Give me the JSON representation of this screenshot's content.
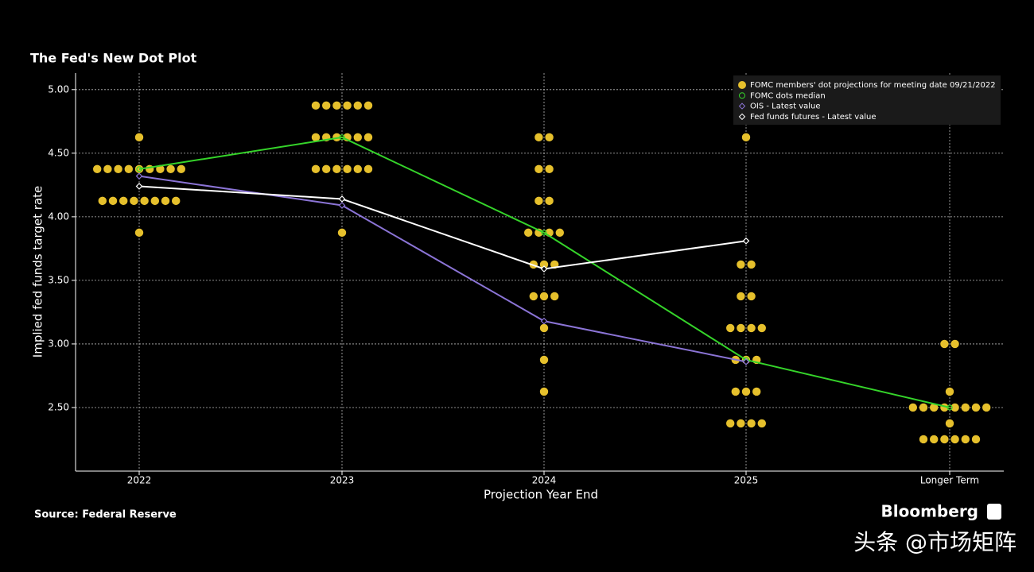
{
  "chart_data": {
    "type": "dot",
    "title": "The Fed's New Dot Plot",
    "ylabel": "Implied fed funds target rate",
    "xlabel": "Projection Year End",
    "source": "Source: Federal Reserve",
    "brand": "Bloomberg",
    "watermark": "头条 @市场矩阵",
    "categories": [
      "2022",
      "2023",
      "2024",
      "2025",
      "Longer Term"
    ],
    "ylim": [
      2.0,
      5.13
    ],
    "yticks": [
      {
        "value": 2.5,
        "label": "2.50"
      },
      {
        "value": 3.0,
        "label": "3.00"
      },
      {
        "value": 3.5,
        "label": "3.50"
      },
      {
        "value": 4.0,
        "label": "4.00"
      },
      {
        "value": 4.5,
        "label": "4.50"
      },
      {
        "value": 5.0,
        "label": "5.00"
      }
    ],
    "grid": true,
    "legend": "top-right",
    "dots": {
      "name": "FOMC members' dot projections for meeting date 09/21/2022",
      "color": "#e6c02c",
      "values": [
        [
          4.625,
          4.375,
          4.375,
          4.375,
          4.375,
          4.375,
          4.375,
          4.375,
          4.375,
          4.375,
          4.125,
          4.125,
          4.125,
          4.125,
          4.125,
          4.125,
          4.125,
          4.125,
          3.875
        ],
        [
          4.875,
          4.875,
          4.875,
          4.875,
          4.875,
          4.875,
          4.625,
          4.625,
          4.625,
          4.625,
          4.625,
          4.625,
          4.375,
          4.375,
          4.375,
          4.375,
          4.375,
          4.375,
          3.875
        ],
        [
          4.625,
          4.625,
          4.375,
          4.375,
          4.125,
          4.125,
          3.875,
          3.875,
          3.875,
          3.875,
          3.625,
          3.625,
          3.625,
          3.375,
          3.375,
          3.375,
          3.125,
          2.875,
          2.625
        ],
        [
          4.625,
          3.625,
          3.625,
          3.375,
          3.375,
          3.125,
          3.125,
          3.125,
          3.125,
          2.875,
          2.875,
          2.875,
          2.625,
          2.625,
          2.625,
          2.375,
          2.375,
          2.375,
          2.375
        ],
        [
          3.0,
          3.0,
          2.625,
          2.5,
          2.5,
          2.5,
          2.5,
          2.5,
          2.5,
          2.5,
          2.5,
          2.375,
          2.25,
          2.25,
          2.25,
          2.25,
          2.25,
          2.25
        ]
      ]
    },
    "series": [
      {
        "name": "FOMC dots median",
        "color": "#35d42a",
        "marker": "circle",
        "values": [
          4.375,
          4.625,
          3.875,
          2.875,
          2.5
        ]
      },
      {
        "name": "OIS - Latest value",
        "color": "#8b74d6",
        "marker": "diamond",
        "values": [
          4.32,
          4.09,
          3.18,
          2.86,
          null
        ]
      },
      {
        "name": "Fed funds futures - Latest value",
        "color": "#ffffff",
        "marker": "diamond",
        "values": [
          4.24,
          4.14,
          3.59,
          3.81,
          null
        ]
      }
    ]
  }
}
